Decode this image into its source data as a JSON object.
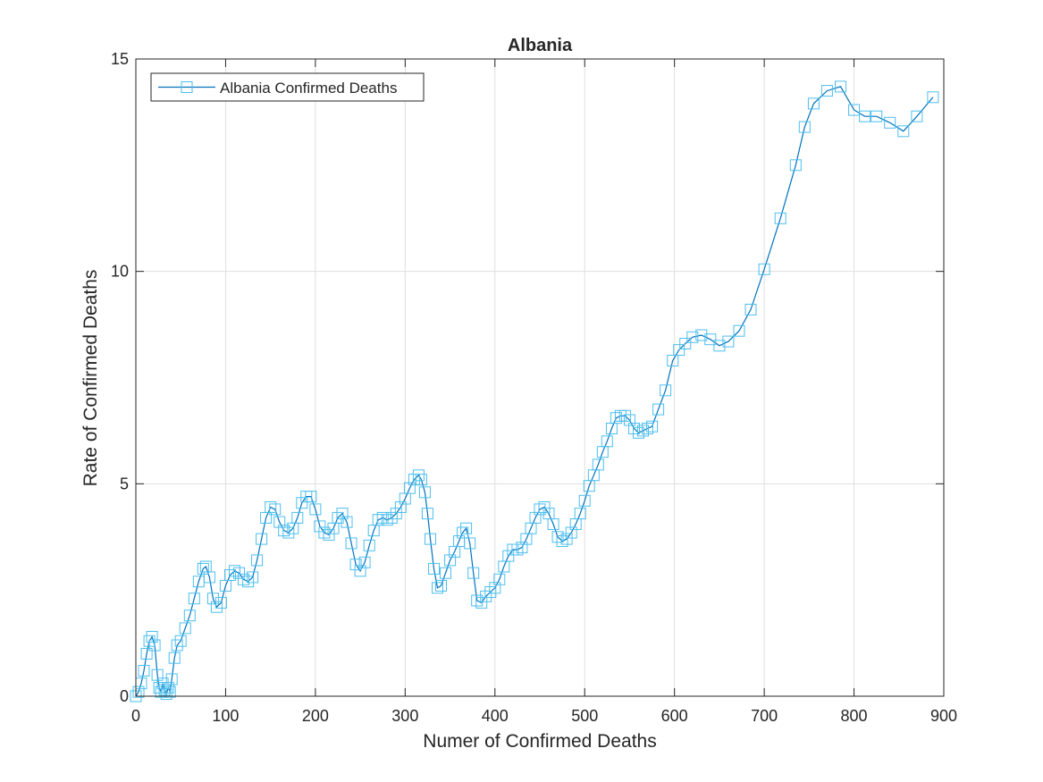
{
  "chart_data": {
    "type": "line",
    "title": "Albania",
    "xlabel": "Numer of Confirmed Deaths",
    "ylabel": "Rate of Confirmed Deaths",
    "xlim": [
      0,
      900
    ],
    "ylim": [
      0,
      15
    ],
    "xticks": [
      "0",
      "100",
      "200",
      "300",
      "400",
      "500",
      "600",
      "700",
      "800",
      "900"
    ],
    "yticks": [
      "0",
      "5",
      "10",
      "15"
    ],
    "grid": true,
    "legend_location": "top-left",
    "series_color": "#0072BD",
    "marker_color": "#4DBEEE",
    "marker": "square",
    "series": [
      {
        "name": "Albania Confirmed Deaths",
        "x": [
          0,
          3,
          6,
          9,
          12,
          15,
          18,
          21,
          24,
          26,
          28,
          30,
          32,
          34,
          36,
          38,
          40,
          43,
          46,
          50,
          55,
          60,
          65,
          70,
          75,
          78,
          82,
          86,
          90,
          95,
          100,
          105,
          110,
          115,
          120,
          125,
          130,
          135,
          140,
          145,
          150,
          155,
          160,
          165,
          170,
          175,
          180,
          185,
          190,
          195,
          200,
          205,
          210,
          215,
          220,
          225,
          230,
          235,
          240,
          245,
          250,
          255,
          260,
          265,
          270,
          275,
          280,
          285,
          290,
          295,
          300,
          305,
          310,
          315,
          318,
          322,
          325,
          328,
          332,
          336,
          340,
          345,
          350,
          355,
          360,
          364,
          368,
          372,
          376,
          380,
          385,
          390,
          395,
          400,
          405,
          410,
          415,
          420,
          425,
          430,
          435,
          440,
          445,
          450,
          455,
          460,
          465,
          470,
          475,
          480,
          485,
          490,
          495,
          500,
          505,
          510,
          515,
          520,
          525,
          530,
          535,
          540,
          545,
          550,
          555,
          560,
          565,
          570,
          575,
          582,
          590,
          598,
          605,
          612,
          620,
          630,
          640,
          650,
          660,
          672,
          685,
          700,
          718,
          735,
          745,
          755,
          770,
          785,
          800,
          812,
          825,
          840,
          855,
          870,
          888
        ],
        "y": [
          0.0,
          0.1,
          0.3,
          0.6,
          1.0,
          1.3,
          1.4,
          1.2,
          0.5,
          0.2,
          0.1,
          0.3,
          0.15,
          0.05,
          0.2,
          0.1,
          0.4,
          0.9,
          1.2,
          1.3,
          1.6,
          1.9,
          2.3,
          2.7,
          3.0,
          3.05,
          2.8,
          2.3,
          2.1,
          2.2,
          2.6,
          2.85,
          2.95,
          2.9,
          2.75,
          2.7,
          2.8,
          3.2,
          3.7,
          4.2,
          4.45,
          4.4,
          4.1,
          3.9,
          3.85,
          3.95,
          4.2,
          4.55,
          4.7,
          4.7,
          4.4,
          4.0,
          3.85,
          3.8,
          3.95,
          4.2,
          4.3,
          4.1,
          3.6,
          3.1,
          2.95,
          3.15,
          3.55,
          3.9,
          4.15,
          4.2,
          4.15,
          4.2,
          4.3,
          4.45,
          4.65,
          4.9,
          5.1,
          5.2,
          5.1,
          4.8,
          4.3,
          3.7,
          3.0,
          2.55,
          2.6,
          2.9,
          3.2,
          3.4,
          3.65,
          3.85,
          3.95,
          3.6,
          2.9,
          2.25,
          2.2,
          2.35,
          2.45,
          2.55,
          2.75,
          3.05,
          3.3,
          3.45,
          3.45,
          3.5,
          3.7,
          3.95,
          4.2,
          4.4,
          4.45,
          4.3,
          4.05,
          3.75,
          3.65,
          3.7,
          3.85,
          4.05,
          4.3,
          4.6,
          4.95,
          5.2,
          5.45,
          5.75,
          6.0,
          6.3,
          6.55,
          6.6,
          6.6,
          6.5,
          6.3,
          6.2,
          6.25,
          6.3,
          6.35,
          6.75,
          7.2,
          7.9,
          8.15,
          8.3,
          8.45,
          8.5,
          8.4,
          8.25,
          8.35,
          8.6,
          9.1,
          10.05,
          11.25,
          12.5,
          13.4,
          13.95,
          14.25,
          14.35,
          13.8,
          13.65,
          13.65,
          13.5,
          13.3,
          13.65,
          14.1
        ]
      }
    ]
  }
}
